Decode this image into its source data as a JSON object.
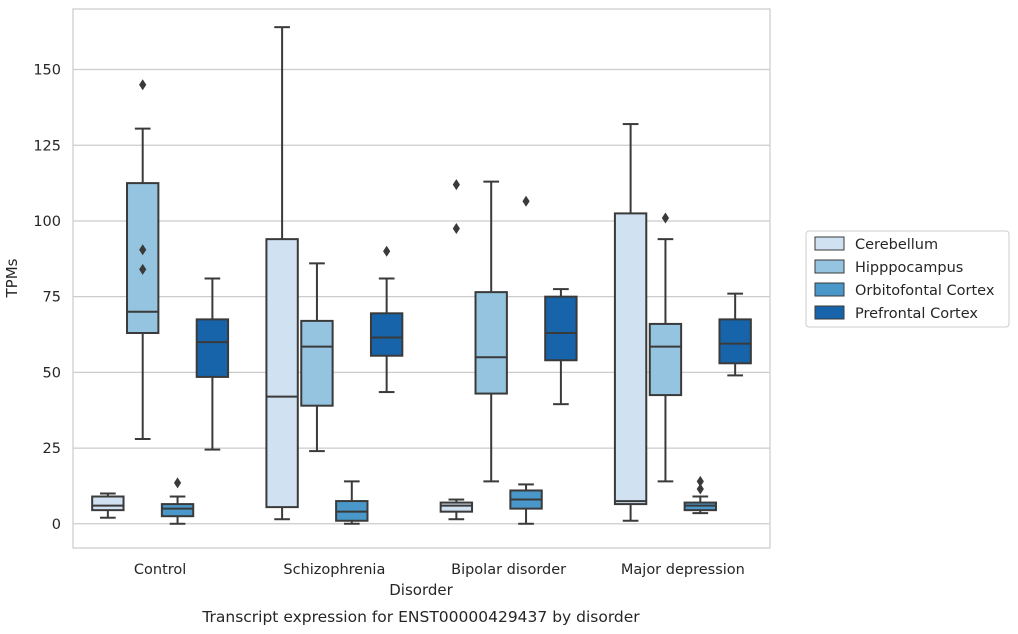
{
  "chart_data": {
    "type": "boxplot",
    "title": "Transcript expression for ENST00000429437 by disorder",
    "xlabel": "Disorder",
    "ylabel": "TPMs",
    "ylim": [
      -8,
      170
    ],
    "yticks": [
      0,
      25,
      50,
      75,
      100,
      125,
      150
    ],
    "grid": "horizontal",
    "legend_position": "right",
    "categories": [
      "Control",
      "Schizophrenia",
      "Bipolar disorder",
      "Major depression"
    ],
    "series": [
      {
        "name": "Cerebellum",
        "color": "#d0e1f2",
        "boxes": [
          {
            "whislo": 2,
            "q1": 4.5,
            "med": 6,
            "q3": 9,
            "whishi": 10,
            "fliers": []
          },
          {
            "whislo": 1.5,
            "q1": 5.5,
            "med": 42,
            "q3": 94,
            "whishi": 164,
            "fliers": []
          },
          {
            "whislo": 1.5,
            "q1": 4,
            "med": 6,
            "q3": 7,
            "whishi": 8,
            "fliers": [
              97.5,
              112
            ]
          },
          {
            "whislo": 1,
            "q1": 6.5,
            "med": 7.5,
            "q3": 102.5,
            "whishi": 132,
            "fliers": []
          }
        ]
      },
      {
        "name": "Hipppocampus",
        "color": "#94c4df",
        "boxes": [
          {
            "whislo": 28,
            "q1": 63,
            "med": 70,
            "q3": 112.5,
            "whishi": 130.5,
            "fliers": [
              84,
              90.5,
              145
            ]
          },
          {
            "whislo": 24,
            "q1": 39,
            "med": 58.5,
            "q3": 67,
            "whishi": 86,
            "fliers": []
          },
          {
            "whislo": 14,
            "q1": 43,
            "med": 55,
            "q3": 76.5,
            "whishi": 113,
            "fliers": []
          },
          {
            "whislo": 14,
            "q1": 42.5,
            "med": 58.5,
            "q3": 66,
            "whishi": 94,
            "fliers": [
              101
            ]
          }
        ]
      },
      {
        "name": "Orbitofontal Cortex",
        "color": "#4a98c9",
        "boxes": [
          {
            "whislo": 0,
            "q1": 2.5,
            "med": 5,
            "q3": 6.5,
            "whishi": 9,
            "fliers": [
              13.5
            ]
          },
          {
            "whislo": 0,
            "q1": 1,
            "med": 4,
            "q3": 7.5,
            "whishi": 14,
            "fliers": []
          },
          {
            "whislo": 0,
            "q1": 5,
            "med": 8,
            "q3": 11,
            "whishi": 13,
            "fliers": [
              106.5
            ]
          },
          {
            "whislo": 3.5,
            "q1": 4.5,
            "med": 6,
            "q3": 7,
            "whishi": 9,
            "fliers": [
              11.5,
              14
            ]
          }
        ]
      },
      {
        "name": "Prefrontal Cortex",
        "color": "#1764ab",
        "boxes": [
          {
            "whislo": 24.5,
            "q1": 48.5,
            "med": 60,
            "q3": 67.5,
            "whishi": 81,
            "fliers": []
          },
          {
            "whislo": 43.5,
            "q1": 55.5,
            "med": 61.5,
            "q3": 69.5,
            "whishi": 81,
            "fliers": [
              90
            ]
          },
          {
            "whislo": 39.5,
            "q1": 54,
            "med": 63,
            "q3": 75,
            "whishi": 77.5,
            "fliers": []
          },
          {
            "whislo": 49,
            "q1": 53,
            "med": 59.5,
            "q3": 67.5,
            "whishi": 76,
            "fliers": []
          }
        ]
      }
    ]
  }
}
